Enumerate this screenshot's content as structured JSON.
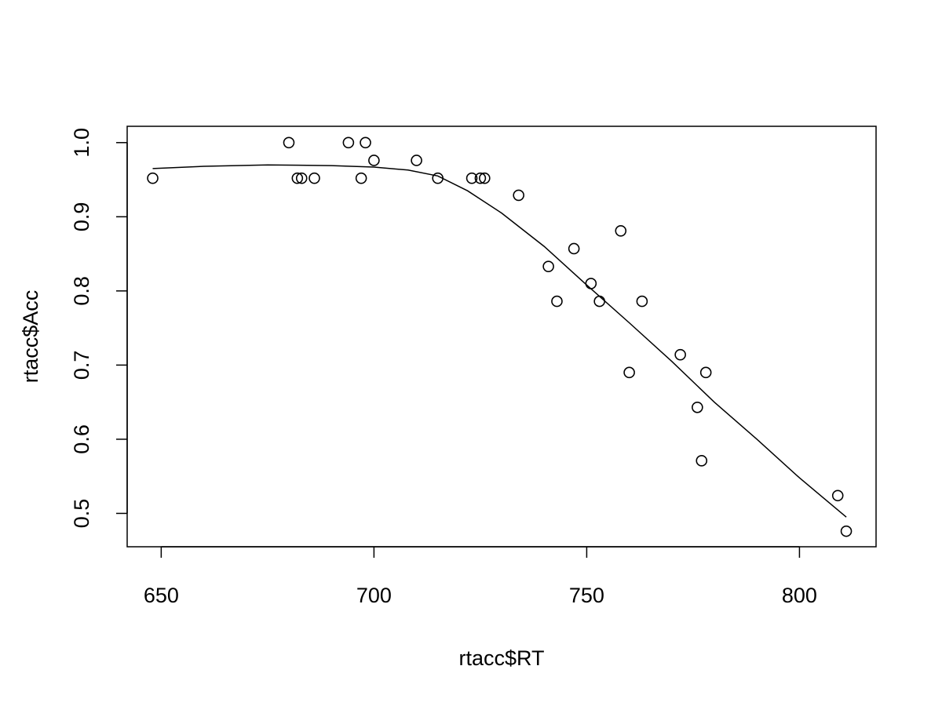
{
  "chart_data": {
    "type": "scatter",
    "title": "",
    "xlabel": "rtacc$RT",
    "ylabel": "rtacc$Acc",
    "xlim": [
      642,
      818
    ],
    "ylim": [
      0.455,
      1.022
    ],
    "xticks": [
      650,
      700,
      750,
      800
    ],
    "yticks": [
      0.5,
      0.6,
      0.7,
      0.8,
      0.9,
      1.0
    ],
    "xtick_labels": [
      "650",
      "700",
      "750",
      "800"
    ],
    "ytick_labels": [
      "0.5",
      "0.6",
      "0.7",
      "0.8",
      "0.9",
      "1.0"
    ],
    "grid": false,
    "legend": "none",
    "points": [
      {
        "x": 648,
        "y": 0.952
      },
      {
        "x": 680,
        "y": 1.0
      },
      {
        "x": 682,
        "y": 0.952
      },
      {
        "x": 683,
        "y": 0.952
      },
      {
        "x": 686,
        "y": 0.952
      },
      {
        "x": 694,
        "y": 1.0
      },
      {
        "x": 697,
        "y": 0.952
      },
      {
        "x": 698,
        "y": 1.0
      },
      {
        "x": 700,
        "y": 0.976
      },
      {
        "x": 710,
        "y": 0.976
      },
      {
        "x": 715,
        "y": 0.952
      },
      {
        "x": 723,
        "y": 0.952
      },
      {
        "x": 725,
        "y": 0.952
      },
      {
        "x": 726,
        "y": 0.952
      },
      {
        "x": 734,
        "y": 0.929
      },
      {
        "x": 741,
        "y": 0.833
      },
      {
        "x": 743,
        "y": 0.786
      },
      {
        "x": 747,
        "y": 0.857
      },
      {
        "x": 751,
        "y": 0.81
      },
      {
        "x": 753,
        "y": 0.786
      },
      {
        "x": 758,
        "y": 0.881
      },
      {
        "x": 760,
        "y": 0.69
      },
      {
        "x": 763,
        "y": 0.786
      },
      {
        "x": 772,
        "y": 0.714
      },
      {
        "x": 776,
        "y": 0.643
      },
      {
        "x": 777,
        "y": 0.571
      },
      {
        "x": 778,
        "y": 0.69
      },
      {
        "x": 809,
        "y": 0.524
      },
      {
        "x": 811,
        "y": 0.476
      }
    ],
    "smooth_line": [
      {
        "x": 648,
        "y": 0.965
      },
      {
        "x": 660,
        "y": 0.968
      },
      {
        "x": 675,
        "y": 0.97
      },
      {
        "x": 690,
        "y": 0.969
      },
      {
        "x": 700,
        "y": 0.967
      },
      {
        "x": 708,
        "y": 0.963
      },
      {
        "x": 715,
        "y": 0.955
      },
      {
        "x": 722,
        "y": 0.935
      },
      {
        "x": 730,
        "y": 0.905
      },
      {
        "x": 740,
        "y": 0.86
      },
      {
        "x": 750,
        "y": 0.808
      },
      {
        "x": 760,
        "y": 0.757
      },
      {
        "x": 770,
        "y": 0.705
      },
      {
        "x": 780,
        "y": 0.65
      },
      {
        "x": 790,
        "y": 0.6
      },
      {
        "x": 800,
        "y": 0.548
      },
      {
        "x": 811,
        "y": 0.495
      }
    ]
  }
}
